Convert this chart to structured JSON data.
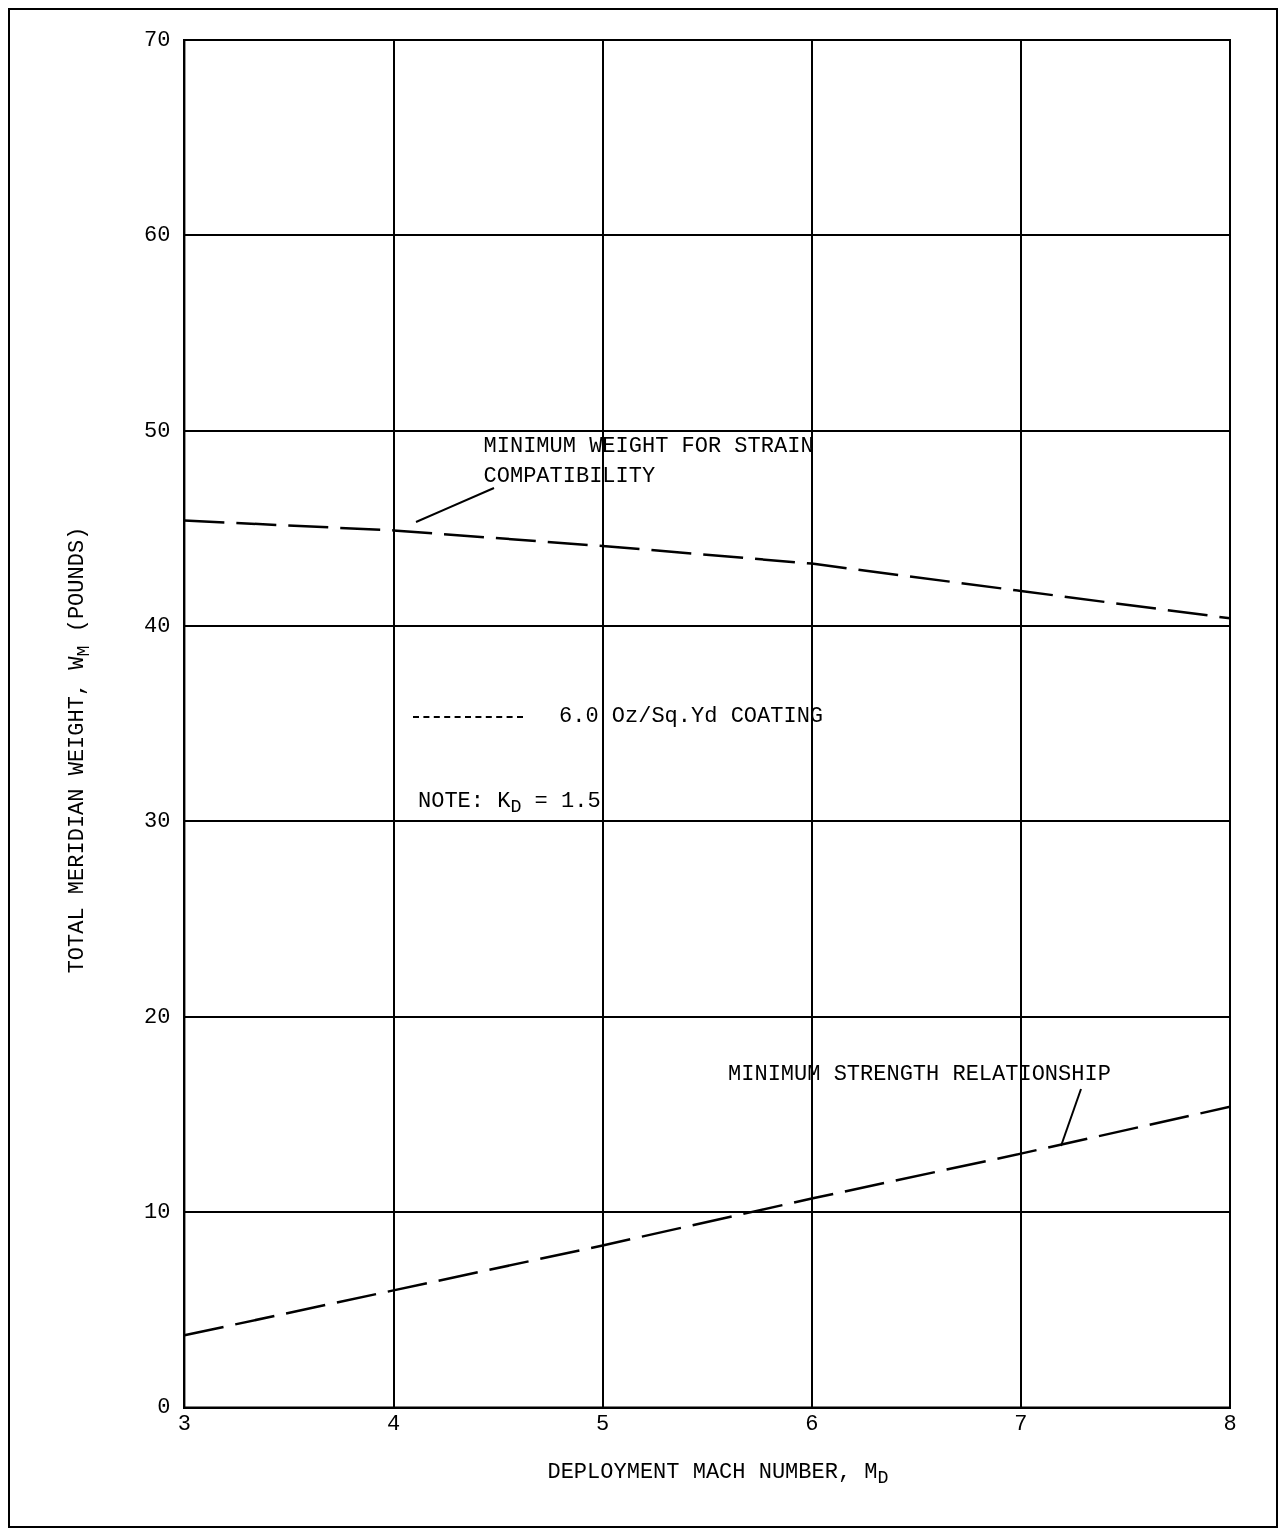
{
  "chart_data": {
    "type": "line",
    "xlabel": "DEPLOYMENT MACH NUMBER, M$_{D}$",
    "ylabel": "TOTAL MERIDIAN WEIGHT, W$_{M}$ (POUNDS)",
    "x": [
      3,
      4,
      5,
      6,
      7,
      8
    ],
    "series": [
      {
        "name": "MINIMUM WEIGHT FOR STRAIN COMPATIBILITY",
        "color": "#000000",
        "values": [
          45.4,
          44.9,
          44.1,
          43.2,
          41.8,
          40.4
        ]
      },
      {
        "name": "MINIMUM STRENGTH RELATIONSHIP",
        "color": "#000000",
        "values": [
          3.7,
          6.0,
          8.3,
          10.7,
          13.0,
          15.4
        ]
      }
    ],
    "xlim": [
      3,
      8
    ],
    "xticks": [
      3,
      4,
      5,
      6,
      7,
      8
    ],
    "ylim": [
      0,
      70
    ],
    "yticks": [
      0,
      10,
      20,
      30,
      40,
      50,
      60,
      70
    ],
    "grid": true,
    "legend": false,
    "marker": "none",
    "line_style": "dashed",
    "annotations": [
      "6.0 Oz/Sq.Yd COATING",
      "NOTE: K$_{D}$ = 1.5"
    ]
  }
}
